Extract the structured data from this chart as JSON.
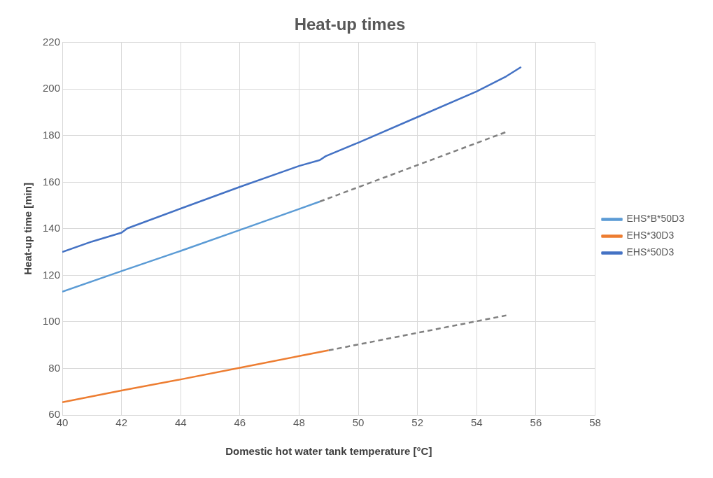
{
  "chart_data": {
    "type": "line",
    "title": "Heat-up times",
    "xlabel": "Domestic hot water tank temperature [°C]",
    "ylabel": "Heat-up time [min]",
    "xlim": [
      40,
      58
    ],
    "xticks": [
      40,
      42,
      44,
      46,
      48,
      50,
      52,
      54,
      56,
      58
    ],
    "ylim": [
      60,
      220
    ],
    "yticks": [
      60,
      80,
      100,
      120,
      140,
      160,
      180,
      200,
      220
    ],
    "grid": true,
    "legend": "right",
    "marker": "none",
    "series": [
      {
        "name": "EHS*B*50D3",
        "color": "#5b9bd5",
        "x": [
          40,
          42,
          44,
          46,
          48,
          48.7
        ],
        "values": [
          113,
          121.8,
          130.5,
          139.5,
          148.5,
          151.7
        ]
      },
      {
        "name": "EHS*30D3",
        "color": "#ed7d31",
        "x": [
          40,
          42,
          44,
          46,
          48,
          49
        ],
        "values": [
          65.5,
          70.5,
          75.3,
          80.3,
          85.3,
          87.8
        ]
      },
      {
        "name": "EHS*50D3",
        "color": "#4472c4",
        "x": [
          40,
          41,
          42,
          42.2,
          44,
          46,
          48,
          48.7,
          48.9,
          50,
          52,
          54,
          55,
          55.5
        ],
        "values": [
          130,
          134.5,
          138.3,
          140.2,
          148.7,
          158,
          167,
          169.5,
          171.2,
          177,
          188,
          199,
          205.5,
          209.5
        ]
      },
      {
        "color": "#808080",
        "line_style": "dashed",
        "x": [
          48.7,
          55
        ],
        "values": [
          151.7,
          181.6
        ]
      },
      {
        "color": "#808080",
        "line_style": "dashed",
        "x": [
          49,
          55
        ],
        "values": [
          87.8,
          102.8
        ]
      }
    ]
  }
}
